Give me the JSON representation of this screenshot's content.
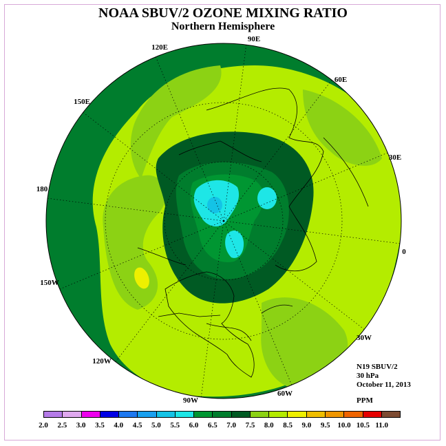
{
  "title": "NOAA SBUV/2 OZONE MIXING RATIO",
  "subtitle": "Northern Hemisphere",
  "longitude_labels": [
    "90E",
    "60E",
    "30E",
    "0",
    "30W",
    "60W",
    "90W",
    "120W",
    "150W",
    "180",
    "150E",
    "120E"
  ],
  "info": {
    "satellite": "N19 SBUV/2",
    "level": "30 hPa",
    "date": "October 11, 2013",
    "units": "PPM"
  },
  "colorbar": {
    "labels": [
      "2.0",
      "2.5",
      "3.0",
      "3.5",
      "4.0",
      "4.5",
      "5.0",
      "5.5",
      "6.0",
      "6.5",
      "7.0",
      "7.5",
      "8.0",
      "8.5",
      "9.0",
      "9.5",
      "10.0",
      "10.5",
      "11.0"
    ],
    "colors": [
      "#b57be8",
      "#dfa8ee",
      "#ee00ee",
      "#0000e6",
      "#1e78f0",
      "#19a0f0",
      "#14c3e6",
      "#1ee6e6",
      "#009632",
      "#007d2d",
      "#005a23",
      "#8cd214",
      "#b4ec00",
      "#eef000",
      "#f0be00",
      "#f09600",
      "#f06400",
      "#e60000",
      "#7d4b32"
    ]
  }
}
